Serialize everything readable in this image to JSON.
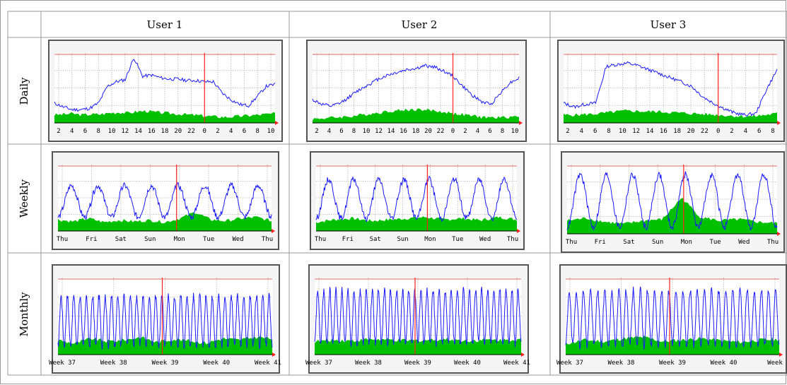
{
  "table": {
    "columns": [
      {
        "label": "User 1"
      },
      {
        "label": "User 2"
      },
      {
        "label": "User 3"
      }
    ],
    "rows": [
      {
        "label": "Daily"
      },
      {
        "label": "Weekly"
      },
      {
        "label": "Monthly"
      }
    ]
  },
  "colors": {
    "incoming": "#00c000",
    "outgoing": "#1a1aff",
    "now_marker": "#ff2020",
    "max_line": "#e06060"
  },
  "chart_data": [
    {
      "type": "area",
      "period": "daily",
      "user": "User 1",
      "x_tick_labels": [
        "2",
        "4",
        "6",
        "8",
        "10",
        "12",
        "14",
        "16",
        "18",
        "20",
        "22",
        "0",
        "2",
        "4",
        "6",
        "8",
        "10"
      ],
      "now_index": 11,
      "ylim": [
        0,
        1
      ],
      "series": [
        {
          "values": [
            0.12,
            0.13,
            0.14,
            0.12,
            0.13,
            0.13,
            0.15,
            0.16,
            0.15,
            0.17,
            0.18,
            0.16,
            0.15,
            0.14,
            0.13,
            0.12,
            0.11,
            0.1,
            0.09,
            0.09,
            0.1,
            0.11,
            0.12,
            0.13,
            0.14
          ]
        },
        {
          "values": [
            0.3,
            0.24,
            0.2,
            0.2,
            0.22,
            0.3,
            0.55,
            0.62,
            0.65,
            0.98,
            0.7,
            0.72,
            0.68,
            0.66,
            0.66,
            0.64,
            0.64,
            0.62,
            0.62,
            0.45,
            0.35,
            0.28,
            0.26,
            0.4,
            0.55,
            0.58
          ]
        }
      ]
    },
    {
      "type": "area",
      "period": "daily",
      "user": "User 2",
      "x_tick_labels": [
        "2",
        "4",
        "6",
        "8",
        "10",
        "12",
        "14",
        "16",
        "18",
        "20",
        "22",
        "0",
        "2",
        "4",
        "6",
        "8",
        "10"
      ],
      "now_index": 11,
      "ylim": [
        0,
        1
      ],
      "series": [
        {
          "values": [
            0.06,
            0.07,
            0.08,
            0.09,
            0.1,
            0.12,
            0.14,
            0.16,
            0.18,
            0.19,
            0.2,
            0.2,
            0.19,
            0.17,
            0.15,
            0.13,
            0.11,
            0.09,
            0.08,
            0.08,
            0.09,
            0.1
          ]
        },
        {
          "values": [
            0.35,
            0.28,
            0.25,
            0.3,
            0.4,
            0.5,
            0.58,
            0.66,
            0.72,
            0.76,
            0.8,
            0.82,
            0.86,
            0.84,
            0.78,
            0.7,
            0.55,
            0.42,
            0.32,
            0.28,
            0.45,
            0.6,
            0.68
          ]
        }
      ]
    },
    {
      "type": "area",
      "period": "daily",
      "user": "User 3",
      "x_tick_labels": [
        "2",
        "4",
        "6",
        "8",
        "10",
        "12",
        "14",
        "16",
        "18",
        "20",
        "22",
        "0",
        "2",
        "4",
        "6",
        "8"
      ],
      "now_index": 11,
      "ylim": [
        0,
        1
      ],
      "series": [
        {
          "values": [
            0.12,
            0.12,
            0.13,
            0.14,
            0.16,
            0.18,
            0.18,
            0.17,
            0.17,
            0.16,
            0.15,
            0.14,
            0.13,
            0.12,
            0.11,
            0.1,
            0.1,
            0.12,
            0.14
          ]
        },
        {
          "values": [
            0.3,
            0.24,
            0.28,
            0.3,
            0.85,
            0.88,
            0.9,
            0.86,
            0.8,
            0.74,
            0.68,
            0.62,
            0.55,
            0.4,
            0.3,
            0.22,
            0.15,
            0.12,
            0.14,
            0.5,
            0.8
          ]
        }
      ]
    },
    {
      "type": "area",
      "period": "weekly",
      "user": "User 1",
      "x_tick_labels": [
        "Thu",
        "Fri",
        "Sat",
        "Sun",
        "Mon",
        "Tue",
        "Wed",
        "Thu"
      ],
      "now_index": 4,
      "ylim": [
        0,
        1
      ],
      "series": [
        {
          "values": [
            0.18,
            0.15,
            0.2,
            0.14,
            0.17,
            0.15,
            0.17,
            0.14,
            0.2,
            0.3,
            0.18,
            0.16,
            0.2,
            0.22,
            0.16
          ]
        },
        {
          "amplitude": [
            0.22,
            0.72
          ],
          "cycles": 8
        }
      ]
    },
    {
      "type": "area",
      "period": "weekly",
      "user": "User 2",
      "x_tick_labels": [
        "Thu",
        "Fri",
        "Sat",
        "Sun",
        "Mon",
        "Tue",
        "Wed",
        "Thu"
      ],
      "now_index": 4,
      "ylim": [
        0,
        1
      ],
      "series": [
        {
          "values": [
            0.14,
            0.18,
            0.2,
            0.16,
            0.18,
            0.2,
            0.22,
            0.18,
            0.2,
            0.17,
            0.22,
            0.18
          ]
        },
        {
          "amplitude": [
            0.2,
            0.82
          ],
          "cycles": 8
        }
      ]
    },
    {
      "type": "area",
      "period": "weekly",
      "user": "User 3",
      "x_tick_labels": [
        "Thu",
        "Fri",
        "Sat",
        "Sun",
        "Mon",
        "Tue",
        "Wed",
        "Thu"
      ],
      "now_index": 4,
      "ylim": [
        0,
        1
      ],
      "series": [
        {
          "values": [
            0.2,
            0.24,
            0.18,
            0.15,
            0.2,
            0.22,
            0.55,
            0.25,
            0.2,
            0.22,
            0.18,
            0.16
          ]
        },
        {
          "amplitude": [
            0.1,
            0.9
          ],
          "cycles": 8
        }
      ]
    },
    {
      "type": "area",
      "period": "monthly",
      "user": "User 1",
      "x_tick_labels": [
        "Week 37",
        "Week 38",
        "Week 39",
        "Week 40",
        "Week 41"
      ],
      "now_index": 2,
      "ylim": [
        0,
        1
      ],
      "series": [
        {
          "values": [
            0.2,
            0.15,
            0.22,
            0.18,
            0.2,
            0.24,
            0.17,
            0.21,
            0.19,
            0.16,
            0.22,
            0.2,
            0.24,
            0.22
          ]
        },
        {
          "amplitude": [
            0.12,
            0.8
          ],
          "cycles": 34
        }
      ]
    },
    {
      "type": "area",
      "period": "monthly",
      "user": "User 2",
      "x_tick_labels": [
        "Week 37",
        "Week 38",
        "Week 39",
        "Week 40",
        "Week 41"
      ],
      "now_index": 2,
      "ylim": [
        0,
        1
      ],
      "series": [
        {
          "values": [
            0.18,
            0.2,
            0.19,
            0.21,
            0.2,
            0.19,
            0.2,
            0.21,
            0.19,
            0.2,
            0.2,
            0.21
          ]
        },
        {
          "amplitude": [
            0.15,
            0.88
          ],
          "cycles": 34
        }
      ]
    },
    {
      "type": "area",
      "period": "monthly",
      "user": "User 3",
      "x_tick_labels": [
        "Week 37",
        "Week 38",
        "Week 39",
        "Week 40",
        "Week"
      ],
      "now_index": 2,
      "ylim": [
        0,
        1
      ],
      "series": [
        {
          "values": [
            0.15,
            0.2,
            0.18,
            0.22,
            0.24,
            0.18,
            0.2,
            0.22,
            0.19,
            0.17,
            0.2,
            0.21
          ]
        },
        {
          "amplitude": [
            0.12,
            0.88
          ],
          "cycles": 30
        }
      ]
    }
  ]
}
